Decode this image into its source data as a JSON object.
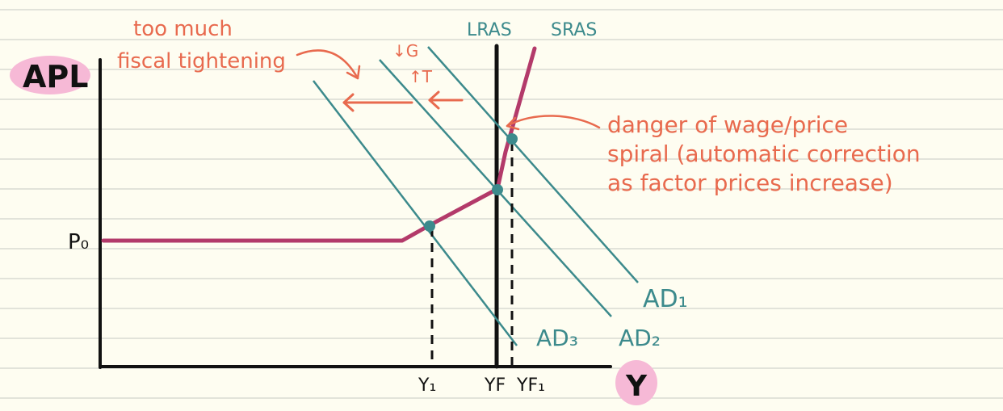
{
  "diagram": {
    "axes": {
      "y_label": "APL",
      "x_label": "Y",
      "price_level_label": "P₀"
    },
    "curve_labels": {
      "lras": "LRAS",
      "sras": "SRAS",
      "ad1": "AD₁",
      "ad2": "AD₂",
      "ad3": "AD₃"
    },
    "output_labels": {
      "y1": "Y₁",
      "yf": "YF",
      "yf1": "YF₁"
    },
    "annotations": {
      "policy_line1": "too much",
      "policy_line2": "fiscal tightening",
      "down_g": "↓G",
      "up_t": "↑T",
      "danger_line1": "danger of wage/price",
      "danger_line2": "spiral (automatic correction",
      "danger_line3": "as factor prices increase)"
    },
    "colors": {
      "background": "#fefdf1",
      "ruled_lines": "#c7c9c4",
      "axis": "#111111",
      "sras": "#b33a6a",
      "ad_lines": "#3c8a8c",
      "annotation": "#e86a4e",
      "label_highlight": "#f6b9d6"
    }
  }
}
